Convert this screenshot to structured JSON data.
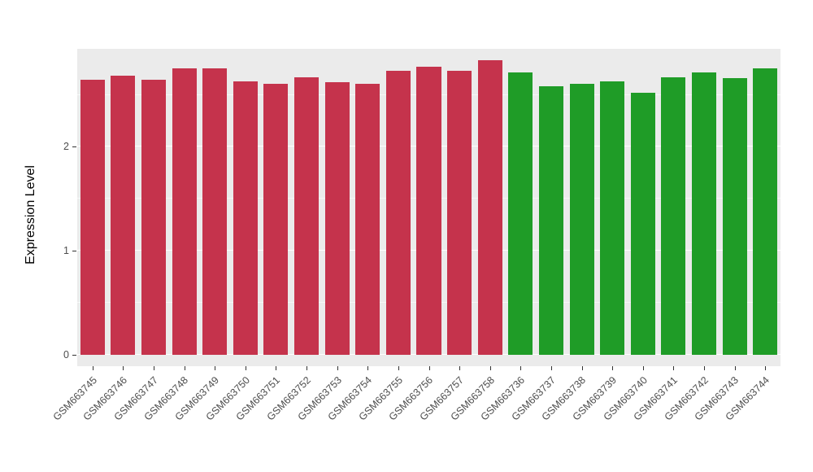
{
  "chart_data": {
    "type": "bar",
    "title": "",
    "xlabel": "",
    "ylabel": "Expression Level",
    "ylim": [
      0,
      2.94
    ],
    "yticks": [
      0,
      1,
      2
    ],
    "yticks_minor": [
      0.5,
      1.5,
      2.5
    ],
    "grid": "on",
    "legend": "none",
    "panel_background": "#EBEBEB",
    "categories": [
      "GSM663745",
      "GSM663746",
      "GSM663747",
      "GSM663748",
      "GSM663749",
      "GSM663750",
      "GSM663751",
      "GSM663752",
      "GSM663753",
      "GSM663754",
      "GSM663755",
      "GSM663756",
      "GSM663757",
      "GSM663758",
      "GSM663736",
      "GSM663737",
      "GSM663738",
      "GSM663739",
      "GSM663740",
      "GSM663741",
      "GSM663742",
      "GSM663743",
      "GSM663744"
    ],
    "values": [
      2.64,
      2.68,
      2.64,
      2.75,
      2.75,
      2.63,
      2.6,
      2.67,
      2.62,
      2.6,
      2.73,
      2.77,
      2.73,
      2.83,
      2.71,
      2.58,
      2.6,
      2.63,
      2.52,
      2.67,
      2.71,
      2.66,
      2.75
    ],
    "groups": [
      "red",
      "red",
      "red",
      "red",
      "red",
      "red",
      "red",
      "red",
      "red",
      "red",
      "red",
      "red",
      "red",
      "red",
      "green",
      "green",
      "green",
      "green",
      "green",
      "green",
      "green",
      "green",
      "green"
    ],
    "palette": {
      "red": "#C5334C",
      "green": "#1F9C27"
    }
  }
}
